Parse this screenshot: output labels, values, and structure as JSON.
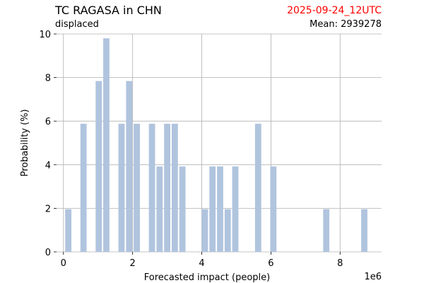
{
  "header": {
    "title": "TC RAGASA in CHN",
    "date": "2025-09-24_12UTC",
    "subtitle": "displaced",
    "mean": "Mean: 2939278"
  },
  "colors": {
    "bar": "#b0c4de",
    "grid": "#b0b0b0",
    "date": "#ff0000"
  },
  "chart_data": {
    "type": "bar",
    "title": "TC RAGASA in CHN",
    "xlabel": "Forecasted impact (people)",
    "ylabel": "Probability (%)",
    "x_offset_label": "1e6",
    "x_scale": 1000000,
    "xlim": [
      -0.2,
      9.2
    ],
    "ylim": [
      0,
      10
    ],
    "x_ticks": [
      0,
      2,
      4,
      6,
      8
    ],
    "y_ticks": [
      0,
      2,
      4,
      6,
      8,
      10
    ],
    "grid": true,
    "bar_width": 0.18,
    "bars": [
      {
        "x": 0.14,
        "y": 1.96
      },
      {
        "x": 0.58,
        "y": 5.88
      },
      {
        "x": 1.02,
        "y": 7.84
      },
      {
        "x": 1.24,
        "y": 9.8
      },
      {
        "x": 1.68,
        "y": 5.88
      },
      {
        "x": 1.9,
        "y": 7.84
      },
      {
        "x": 2.12,
        "y": 5.88
      },
      {
        "x": 2.56,
        "y": 5.88
      },
      {
        "x": 2.78,
        "y": 3.92
      },
      {
        "x": 3.0,
        "y": 5.88
      },
      {
        "x": 3.22,
        "y": 5.88
      },
      {
        "x": 3.44,
        "y": 3.92
      },
      {
        "x": 4.09,
        "y": 1.96
      },
      {
        "x": 4.31,
        "y": 3.92
      },
      {
        "x": 4.53,
        "y": 3.92
      },
      {
        "x": 4.75,
        "y": 1.96
      },
      {
        "x": 4.97,
        "y": 3.92
      },
      {
        "x": 5.63,
        "y": 5.88
      },
      {
        "x": 6.07,
        "y": 3.92
      },
      {
        "x": 7.6,
        "y": 1.96
      },
      {
        "x": 8.7,
        "y": 1.96
      }
    ]
  }
}
